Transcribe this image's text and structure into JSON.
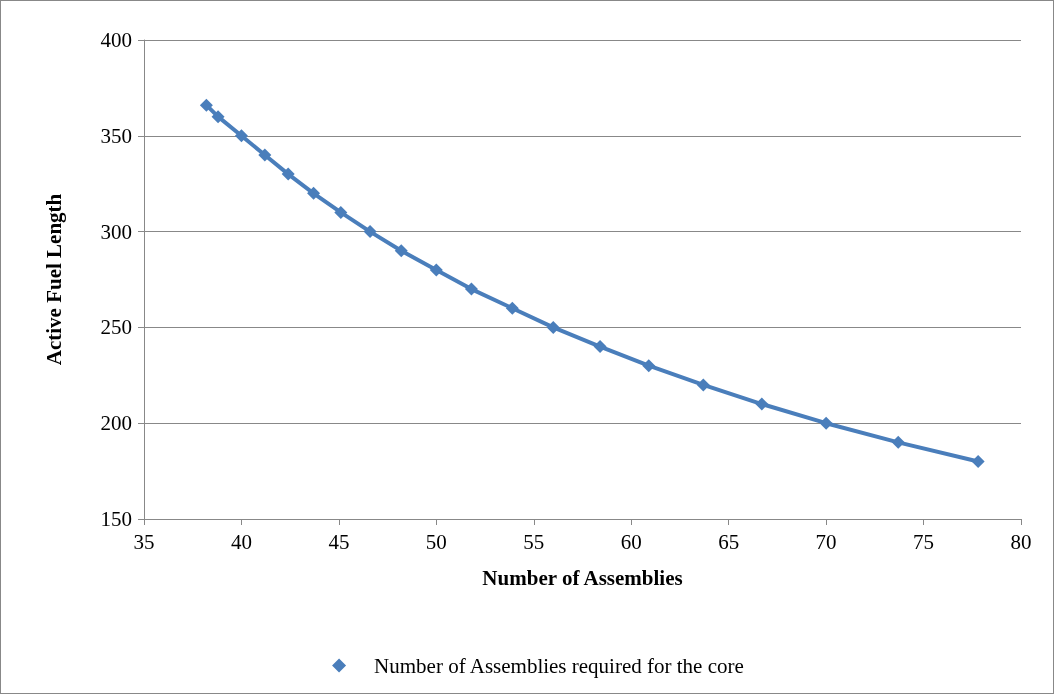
{
  "chart_data": {
    "type": "line",
    "xlabel": "Number of Assemblies",
    "ylabel": "Active Fuel Length",
    "x": [
      38.2,
      38.8,
      40.0,
      41.2,
      42.4,
      43.7,
      45.1,
      46.6,
      48.2,
      50.0,
      51.8,
      53.9,
      56.0,
      58.4,
      60.9,
      63.7,
      66.7,
      70.0,
      73.7,
      77.8
    ],
    "series": [
      {
        "name": "Number of Assemblies required for the core",
        "color": "#4a7ebb",
        "values": [
          366,
          360,
          350,
          340,
          330,
          320,
          310,
          300,
          290,
          280,
          270,
          260,
          250,
          240,
          230,
          220,
          210,
          200,
          190,
          180
        ]
      }
    ],
    "xlim": [
      35,
      80
    ],
    "xticks": [
      35,
      40,
      45,
      50,
      55,
      60,
      65,
      70,
      75,
      80
    ],
    "ylim": [
      150,
      400
    ],
    "yticks": [
      150,
      200,
      250,
      300,
      350,
      400
    ],
    "grid": "y",
    "legend": "bottom",
    "marker": "diamond",
    "line_style": "solid"
  }
}
